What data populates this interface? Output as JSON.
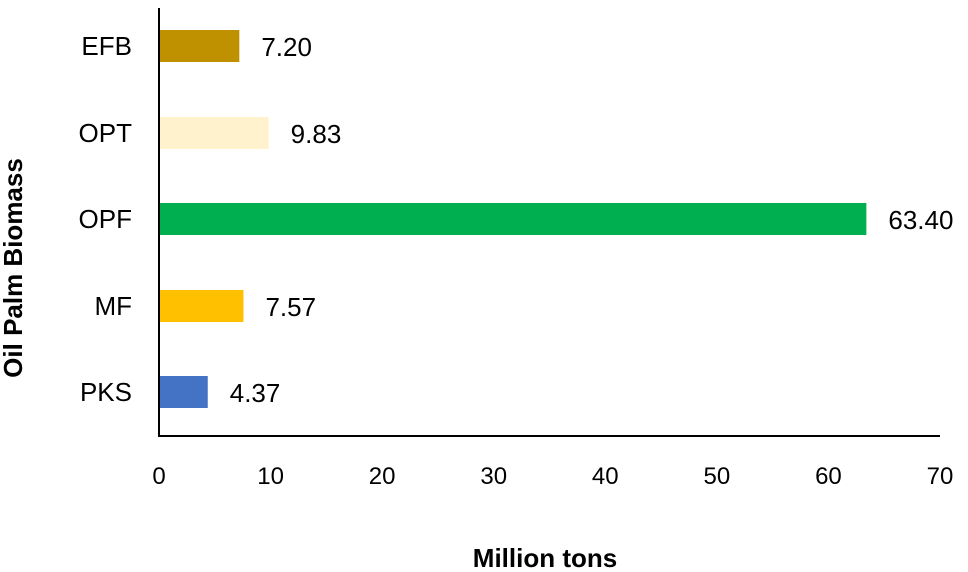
{
  "chart_data": {
    "type": "bar",
    "orientation": "horizontal",
    "title": "",
    "xlabel": "Million tons",
    "ylabel": "Oil Palm Biomass",
    "xlim": [
      0,
      70
    ],
    "x_ticks": [
      "0",
      "10",
      "20",
      "30",
      "40",
      "50",
      "60",
      "70"
    ],
    "grid": false,
    "legend": "none",
    "categories": [
      "EFB",
      "OPT",
      "OPF",
      "MF",
      "PKS"
    ],
    "values": [
      7.2,
      9.83,
      63.4,
      7.57,
      4.37
    ],
    "value_labels": [
      "7.20",
      "9.83",
      "63.40",
      "7.57",
      "4.37"
    ],
    "colors": [
      "#BF9000",
      "#FFF2CC",
      "#00B050",
      "#FFC000",
      "#4472C4"
    ]
  }
}
